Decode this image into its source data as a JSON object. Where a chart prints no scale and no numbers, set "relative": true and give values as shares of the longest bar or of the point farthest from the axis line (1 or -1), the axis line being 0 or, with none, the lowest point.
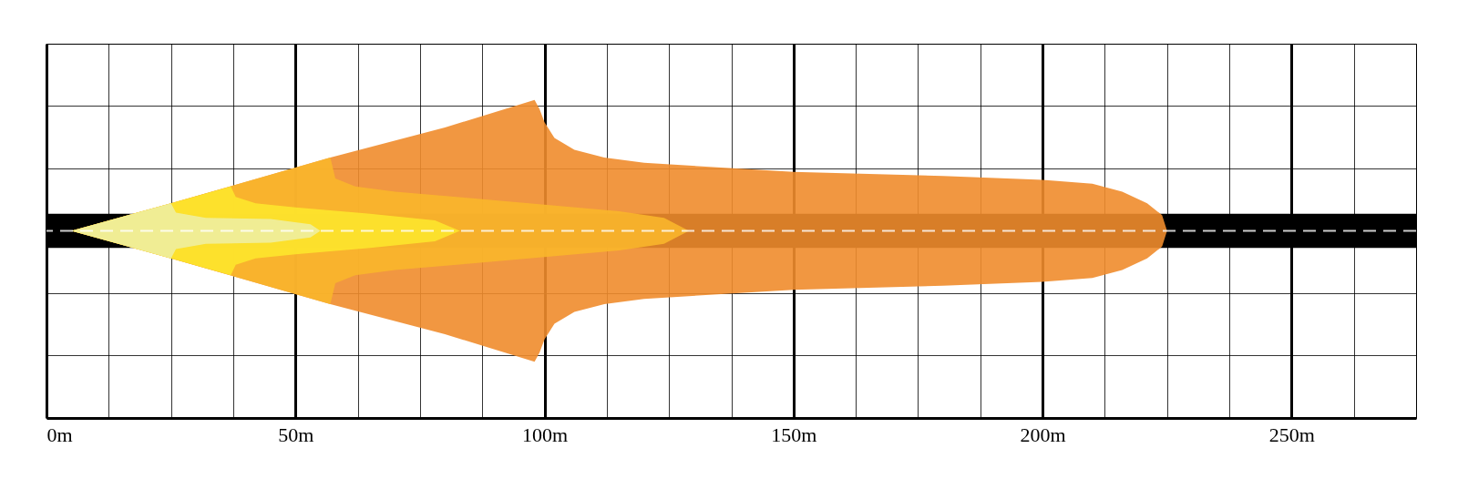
{
  "chart_data": {
    "type": "area",
    "relative": true,
    "grid": true,
    "xlim": [
      0,
      275
    ],
    "xticks": [
      {
        "value": 0,
        "label": "0m"
      },
      {
        "value": 12.5,
        "label": null
      },
      {
        "value": 25,
        "label": null
      },
      {
        "value": 37.5,
        "label": null
      },
      {
        "value": 50,
        "label": "50m"
      },
      {
        "value": 62.5,
        "label": null
      },
      {
        "value": 75,
        "label": null
      },
      {
        "value": 87.5,
        "label": null
      },
      {
        "value": 100,
        "label": "100m"
      },
      {
        "value": 112.5,
        "label": null
      },
      {
        "value": 125,
        "label": null
      },
      {
        "value": 137.5,
        "label": null
      },
      {
        "value": 150,
        "label": "150m"
      },
      {
        "value": 162.5,
        "label": null
      },
      {
        "value": 175,
        "label": null
      },
      {
        "value": 187.5,
        "label": null
      },
      {
        "value": 200,
        "label": "200m"
      },
      {
        "value": 212.5,
        "label": null
      },
      {
        "value": 225,
        "label": null
      },
      {
        "value": 237.5,
        "label": null
      },
      {
        "value": 250,
        "label": "250m"
      },
      {
        "value": 262.5,
        "label": null
      }
    ],
    "series": [
      {
        "color": "#f08c2c",
        "x": [
          5,
          25,
          57,
          80,
          98,
          99,
          100,
          102,
          106,
          112,
          120,
          150,
          180,
          200,
          210,
          216,
          221,
          224,
          225
        ],
        "values": [
          0,
          0.21,
          0.56,
          0.79,
          1.0,
          0.93,
          0.83,
          0.71,
          0.62,
          0.56,
          0.52,
          0.45,
          0.42,
          0.39,
          0.36,
          0.3,
          0.21,
          0.12,
          0
        ]
      },
      {
        "color": "#fab62b",
        "x": [
          5,
          25,
          57,
          58,
          62,
          70,
          85,
          100,
          115,
          124,
          129
        ],
        "values": [
          0,
          0.21,
          0.56,
          0.4,
          0.34,
          0.3,
          0.25,
          0.2,
          0.15,
          0.1,
          0
        ]
      },
      {
        "color": "#fde52c",
        "x": [
          5,
          25,
          37,
          38,
          42,
          50,
          65,
          78,
          83
        ],
        "values": [
          0,
          0.21,
          0.34,
          0.26,
          0.21,
          0.18,
          0.13,
          0.08,
          0
        ]
      },
      {
        "color": "#eeeea0",
        "x": [
          5,
          25,
          26,
          32,
          45,
          53,
          55
        ],
        "values": [
          0,
          0.21,
          0.14,
          0.1,
          0.09,
          0.05,
          0
        ]
      }
    ],
    "bands": [
      {
        "axis": "y",
        "from": -0.13,
        "to": 0.13,
        "color": "#000000"
      }
    ],
    "ref_lines": [
      {
        "axis": "y",
        "value": 0,
        "color": "#ffffff",
        "line_style": "dashed"
      }
    ]
  }
}
